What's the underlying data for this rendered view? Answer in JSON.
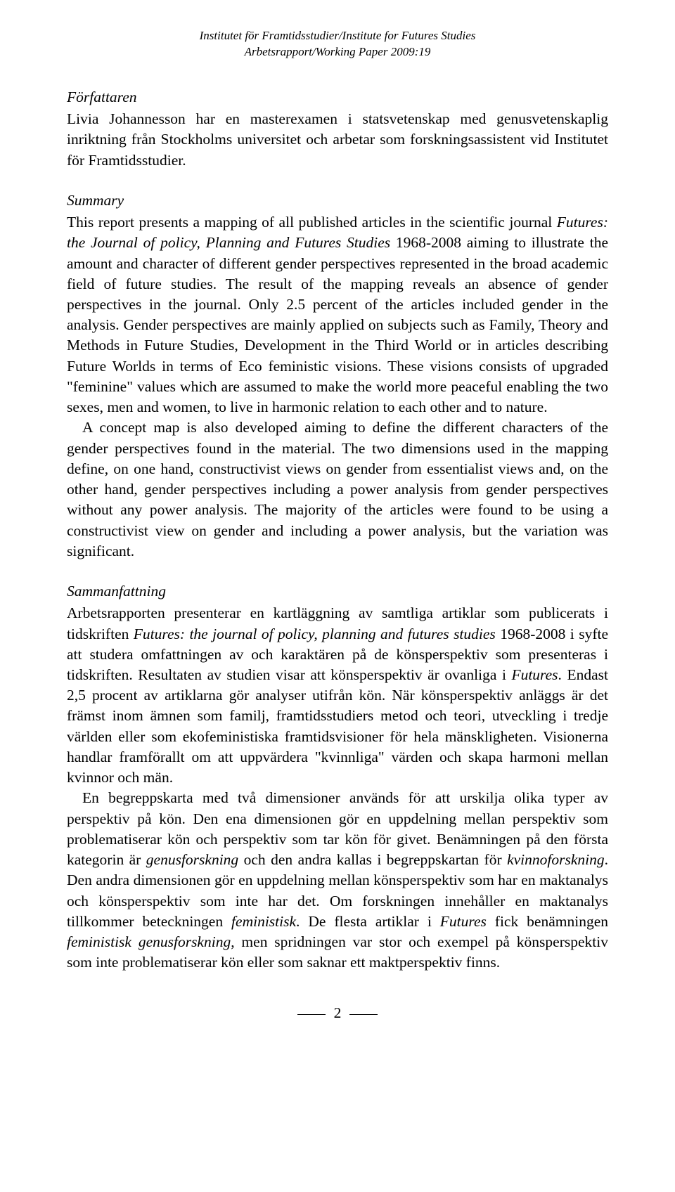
{
  "header": {
    "line1": "Institutet för Framtidsstudier/Institute for Futures Studies",
    "line2": "Arbetsrapport/Working Paper 2009:19"
  },
  "forfattaren": {
    "title": "Författaren",
    "text": "Livia Johannesson har en masterexamen i statsvetenskap med genusvetenskaplig inriktning från Stockholms universitet och arbetar som forskningsassistent vid Institutet för Framtidsstudier."
  },
  "summary": {
    "title": "Summary",
    "text_a": "This report presents a mapping of all published articles in the scientific journal ",
    "ital_a": "Futures: the Journal of policy, Planning and Futures Studies",
    "text_b": " 1968-2008 aiming to illustrate the amount and character of different gender perspectives represented in the broad academic field of future studies. The result of the mapping reveals an absence of gender perspectives in the journal. Only 2.5 percent of the articles included gender in the analysis. Gender perspectives are mainly applied on subjects such as Family, Theory and Methods in Future Studies, Development in the Third World or in articles describing Future Worlds in terms of Eco feministic visions. These visions consists of upgraded \"feminine\" values which are assumed to make the world more peaceful enabling the two sexes, men and women, to live in harmonic relation to each other and to nature.",
    "para2": "A concept map is also developed aiming to define the different characters of the gender perspectives found in the material. The two dimensions used in the mapping define, on one hand, constructivist views on gender from essentialist views and, on the other hand, gender perspectives including a power analysis from gender perspectives without any power analysis. The majority of the articles were found to be using a constructivist view on gender and including a power analysis, but the variation was significant."
  },
  "samman": {
    "title": "Sammanfattning",
    "p1_a": "Arbetsrapporten presenterar en kartläggning av samtliga artiklar som publicerats i tidskriften ",
    "p1_ital": "Futures: the journal of policy, planning and futures studies",
    "p1_b": " 1968-2008 i syfte att studera omfattningen av och karaktären på de könsperspektiv som presenteras i tidskriften. Resultaten av studien visar att könsperspektiv är ovanliga i ",
    "p1_ital2": "Futures",
    "p1_c": ". Endast 2,5 procent av artiklarna gör analyser utifrån kön. När könsperspektiv anläggs är det främst inom ämnen som familj, framtidsstudiers metod och teori, utveckling i tredje världen eller som ekofeministiska framtidsvisioner för hela mänskligheten. Visionerna handlar framförallt om att uppvärdera \"kvinnliga\" värden och skapa harmoni mellan kvinnor och män.",
    "p2_a": "En begreppskarta med två dimensioner används för att urskilja olika typer av perspektiv på kön. Den ena dimensionen gör en uppdelning mellan perspektiv som problematiserar kön och perspektiv som tar kön för givet. Benämningen på den första kategorin är ",
    "p2_i1": "genusforskning",
    "p2_b": " och den andra kallas i begreppskartan för ",
    "p2_i2": "kvinnoforskning",
    "p2_c": ". Den andra dimensionen gör en uppdelning mellan könsperspektiv som har en maktanalys och könsperspektiv som inte har det. Om forskningen innehåller en maktanalys tillkommer beteckningen ",
    "p2_i3": "feministisk",
    "p2_d": ". De flesta artiklar i ",
    "p2_i4": "Futures",
    "p2_e": " fick benämningen ",
    "p2_i5": "feministisk genusforskning",
    "p2_f": ", men spridningen var stor och exempel på könsperspektiv som inte problematiserar kön eller som saknar ett maktperspektiv finns."
  },
  "page_number": "2"
}
